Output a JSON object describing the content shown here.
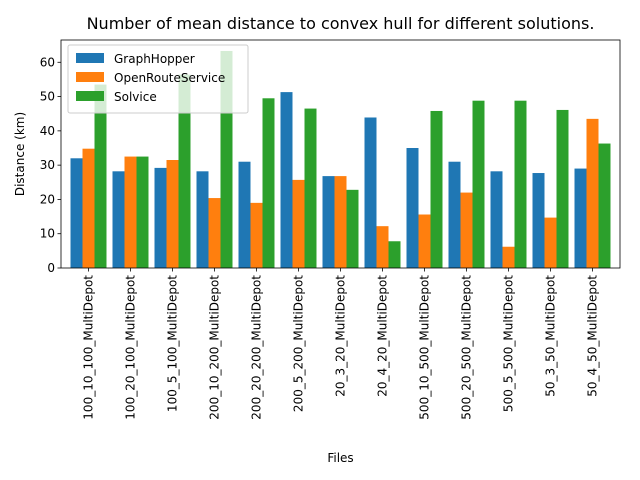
{
  "chart_data": {
    "type": "bar",
    "title": "Number of mean distance to convex hull for different solutions.",
    "xlabel": "Files",
    "ylabel": "Distance (km)",
    "ylim": [
      0,
      66.5
    ],
    "yticks": [
      0,
      10,
      20,
      30,
      40,
      50,
      60
    ],
    "legend_position": "top-left",
    "categories": [
      "100_10_100_MultiDepot",
      "100_20_100_MultiDepot",
      "100_5_100_MultiDepot",
      "200_10_200_MultiDepot",
      "200_20_200_MultiDepot",
      "200_5_200_MultiDepot",
      "20_3_20_MultiDepot",
      "20_4_20_MultiDepot",
      "500_10_500_MultiDepot",
      "500_20_500_MultiDepot",
      "500_5_500_MultiDepot",
      "50_3_50_MultiDepot",
      "50_4_50_MultiDepot"
    ],
    "series": [
      {
        "name": "GraphHopper",
        "color": "#1f77b4",
        "values": [
          32.0,
          28.2,
          29.2,
          28.2,
          31.0,
          51.3,
          26.8,
          43.9,
          35.0,
          31.0,
          28.2,
          27.7,
          29.0
        ]
      },
      {
        "name": "OpenRouteService",
        "color": "#ff7f0e",
        "values": [
          34.8,
          32.5,
          31.5,
          20.4,
          19.0,
          25.7,
          26.8,
          12.2,
          15.6,
          22.0,
          6.2,
          14.7,
          43.5
        ]
      },
      {
        "name": "Solvice",
        "color": "#2ca02c",
        "values": [
          53.5,
          32.5,
          56.4,
          63.3,
          49.5,
          46.5,
          22.8,
          7.8,
          45.8,
          48.8,
          48.8,
          46.1,
          36.3
        ]
      }
    ]
  }
}
